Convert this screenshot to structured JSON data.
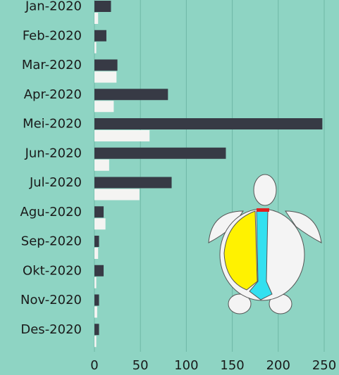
{
  "chart_data": {
    "type": "bar",
    "orientation": "horizontal",
    "categories": [
      "Jan-2020",
      "Feb-2020",
      "Mar-2020",
      "Apr-2020",
      "Mei-2020",
      "Jun-2020",
      "Jul-2020",
      "Agu-2020",
      "Sep-2020",
      "Okt-2020",
      "Nov-2020",
      "Des-2020"
    ],
    "series": [
      {
        "color": "#373a45",
        "values": [
          18,
          13,
          25,
          80,
          248,
          143,
          84,
          10,
          5,
          10,
          5,
          5
        ]
      },
      {
        "color": "#f4f4f2",
        "values": [
          4,
          2,
          24,
          21,
          60,
          16,
          49,
          12,
          4,
          2,
          3,
          2
        ]
      }
    ],
    "xlim": [
      0,
      250
    ],
    "xticks": [
      0,
      50,
      100,
      150,
      200,
      250
    ],
    "grid": true
  }
}
